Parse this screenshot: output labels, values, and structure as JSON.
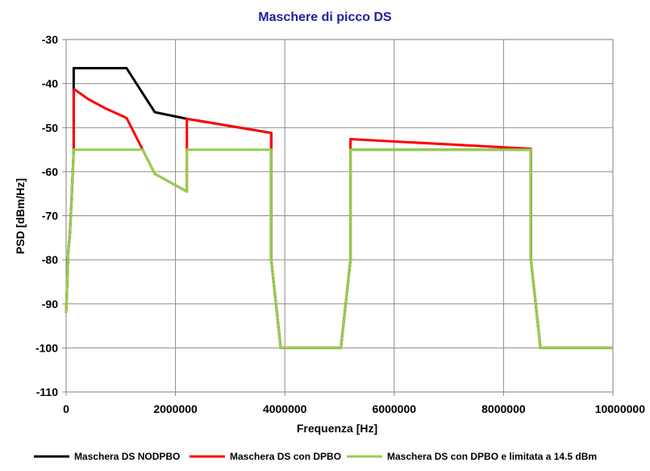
{
  "chart_data": {
    "type": "line",
    "title": "Maschere di picco DS",
    "xlabel": "Frequenza [Hz]",
    "ylabel": "PSD [dBm/Hz]",
    "xlim": [
      0,
      10000000
    ],
    "ylim": [
      -110,
      -30
    ],
    "x_ticks": [
      0,
      2000000,
      4000000,
      6000000,
      8000000,
      10000000
    ],
    "x_tick_labels": [
      "0",
      "2000000",
      "4000000",
      "6000000",
      "8000000",
      "10000000"
    ],
    "y_ticks": [
      -30,
      -40,
      -50,
      -60,
      -70,
      -80,
      -90,
      -100,
      -110
    ],
    "y_tick_labels": [
      "-30",
      "-40",
      "-50",
      "-60",
      "-70",
      "-80",
      "-90",
      "-100",
      "-110"
    ],
    "grid": true,
    "legend_position": "bottom",
    "series": [
      {
        "name": "Maschera DS NODPBO",
        "color": "#000000",
        "x": [
          0,
          40000,
          70000,
          100000,
          138000,
          138000,
          1104000,
          1622000,
          2208000,
          2208000,
          3750000,
          3750000,
          3925000,
          5025000,
          5200000,
          5200000,
          8500000,
          8500000,
          8675000,
          10000000
        ],
        "y": [
          -92,
          -78,
          -74,
          -66,
          -55,
          -36.5,
          -36.5,
          -46.5,
          -48,
          -48,
          -51.2,
          -80,
          -100,
          -100,
          -80,
          -55,
          -55,
          -80,
          -100,
          -100
        ]
      },
      {
        "name": "Maschera DS con DPBO",
        "color": "#ff0000",
        "x": [
          0,
          40000,
          70000,
          100000,
          138000,
          138000,
          150000,
          400000,
          700000,
          1104000,
          1400000,
          1622000,
          2208000,
          2208000,
          2208000,
          3750000,
          3750000,
          3925000,
          5025000,
          5200000,
          5200000,
          8500000,
          8500000,
          8675000,
          10000000
        ],
        "y": [
          -92,
          -78,
          -74,
          -66,
          -55,
          -42,
          -41.3,
          -43.5,
          -45.5,
          -47.8,
          -55,
          -60.5,
          -64.5,
          -55,
          -48,
          -51.2,
          -80,
          -100,
          -100,
          -80,
          -52.6,
          -54.8,
          -80,
          -100,
          -100
        ]
      },
      {
        "name": "Maschera DS con DPBO e limitata a 14.5 dBm",
        "color": "#92d050",
        "x": [
          0,
          40000,
          70000,
          100000,
          138000,
          1400000,
          1622000,
          2208000,
          2208000,
          3750000,
          3750000,
          3925000,
          5025000,
          5200000,
          5200000,
          8500000,
          8500000,
          8675000,
          10000000
        ],
        "y": [
          -92,
          -78,
          -74,
          -66,
          -55,
          -55,
          -60.5,
          -64.5,
          -55,
          -55,
          -80,
          -100,
          -100,
          -80,
          -55,
          -55,
          -80,
          -100,
          -100
        ]
      }
    ]
  }
}
